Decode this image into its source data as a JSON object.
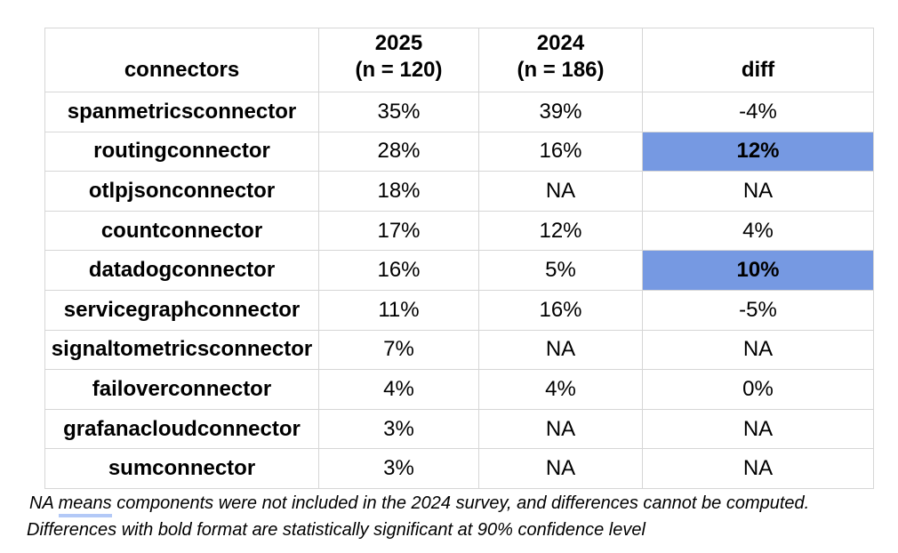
{
  "chart_data": {
    "type": "table",
    "columns": [
      {
        "id": "connectors",
        "line1": "connectors",
        "line2": ""
      },
      {
        "id": "y2025",
        "line1": "2025",
        "line2": "(n = 120)"
      },
      {
        "id": "y2024",
        "line1": "2024",
        "line2": "(n = 186)"
      },
      {
        "id": "diff",
        "line1": "diff",
        "line2": ""
      }
    ],
    "rows": [
      {
        "connector": "spanmetricsconnector",
        "y2025": "35%",
        "y2024": "39%",
        "diff": "-4%",
        "diff_highlighted": false
      },
      {
        "connector": "routingconnector",
        "y2025": "28%",
        "y2024": "16%",
        "diff": "12%",
        "diff_highlighted": true
      },
      {
        "connector": "otlpjsonconnector",
        "y2025": "18%",
        "y2024": "NA",
        "diff": "NA",
        "diff_highlighted": false
      },
      {
        "connector": "countconnector",
        "y2025": "17%",
        "y2024": "12%",
        "diff": "4%",
        "diff_highlighted": false
      },
      {
        "connector": "datadogconnector",
        "y2025": "16%",
        "y2024": "5%",
        "diff": "10%",
        "diff_highlighted": true
      },
      {
        "connector": "servicegraphconnector",
        "y2025": "11%",
        "y2024": "16%",
        "diff": "-5%",
        "diff_highlighted": false
      },
      {
        "connector": "signaltometricsconnector",
        "y2025": "7%",
        "y2024": "NA",
        "diff": "NA",
        "diff_highlighted": false
      },
      {
        "connector": "failoverconnector",
        "y2025": "4%",
        "y2024": "4%",
        "diff": "0%",
        "diff_highlighted": false
      },
      {
        "connector": "grafanacloudconnector",
        "y2025": "3%",
        "y2024": "NA",
        "diff": "NA",
        "diff_highlighted": false
      },
      {
        "connector": "sumconnector",
        "y2025": "3%",
        "y2024": "NA",
        "diff": "NA",
        "diff_highlighted": false
      }
    ]
  },
  "footnote": {
    "line1_prefix": "NA ",
    "line1_underline_word": "means",
    "line1_suffix": " components were not included in the 2024 survey, and differences cannot be computed.",
    "line2": "Differences with bold format are statistically significant at 90% confidence level"
  },
  "colors": {
    "highlight_fill": "#7699e2",
    "grid_line": "#d6d6d6",
    "means_underline": "#b3c9f7"
  }
}
